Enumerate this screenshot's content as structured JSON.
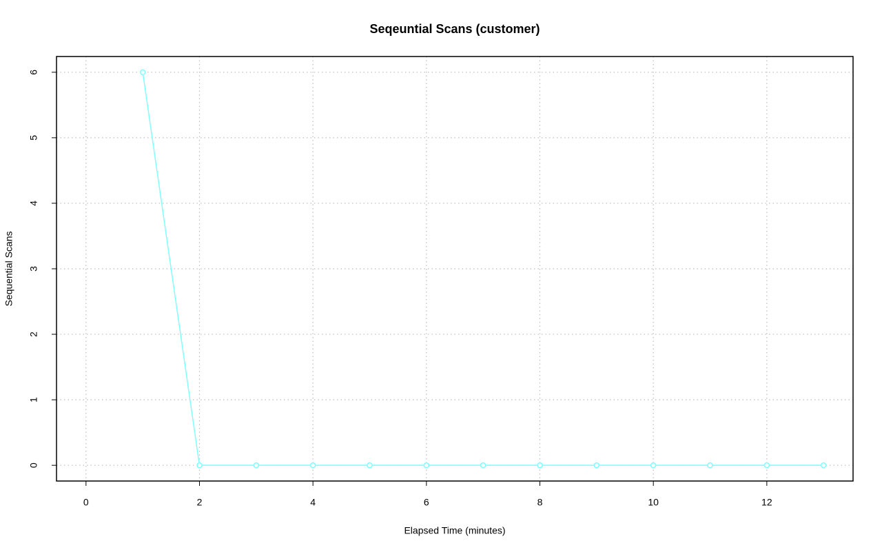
{
  "chart_data": {
    "type": "line",
    "title": "Seqeuntial Scans (customer)",
    "x_label": "Elapsed Time (minutes)",
    "y_label": "Sequential Scans",
    "x": [
      1,
      2,
      3,
      4,
      5,
      6,
      7,
      8,
      9,
      10,
      11,
      12,
      13
    ],
    "series": [
      {
        "color": "#7fffff",
        "values": [
          6,
          0,
          0,
          0,
          0,
          0,
          0,
          0,
          0,
          0,
          0,
          0,
          0
        ]
      }
    ],
    "xlim": [
      -0.52,
      13.52
    ],
    "ylim": [
      -0.24,
      6.24
    ],
    "xticks": [
      0,
      2,
      4,
      6,
      8,
      10,
      12
    ],
    "yticks": [
      0,
      1,
      2,
      3,
      4,
      5,
      6
    ],
    "grid": true
  }
}
